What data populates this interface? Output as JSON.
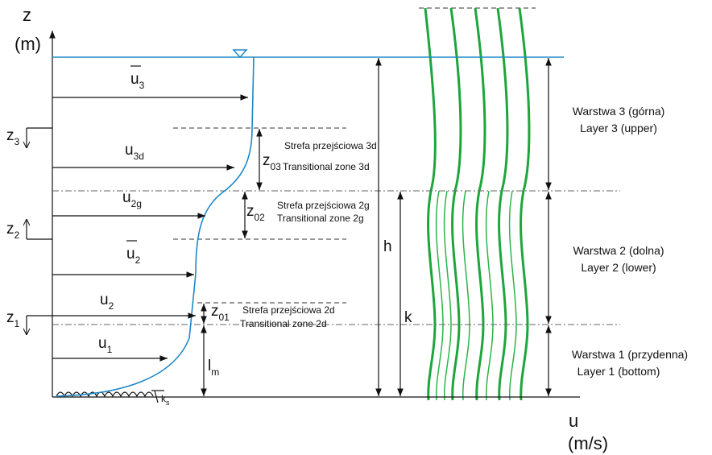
{
  "axes": {
    "z_label": "z",
    "z_unit": "(m)",
    "u_label": "u",
    "u_unit": "(m/s)"
  },
  "velocities": [
    {
      "base": "u",
      "sub": "3"
    },
    {
      "base": "u",
      "sub": "3d"
    },
    {
      "base": "u",
      "sub": "2g"
    },
    {
      "base": "u",
      "sub": "2"
    },
    {
      "base": "u",
      "sub": "2"
    },
    {
      "base": "u",
      "sub": "1"
    }
  ],
  "heights": [
    {
      "base": "z",
      "sub": "3"
    },
    {
      "base": "z",
      "sub": "2"
    },
    {
      "base": "z",
      "sub": "1"
    }
  ],
  "zones": [
    {
      "base": "z",
      "sub": "03",
      "title": "Strefa przejściowa 3d",
      "subtitle": "Transitional zone 3d"
    },
    {
      "base": "z",
      "sub": "02",
      "title": "Strefa przejściowa 2g",
      "subtitle": "Transitional zone 2g"
    },
    {
      "base": "z",
      "sub": "01",
      "title": "Strefa przejściowa 2d",
      "subtitle": "Transitional zone 2d"
    }
  ],
  "dimensions": [
    {
      "base": "l",
      "sub": "m"
    },
    {
      "base": "k",
      "sub": "s"
    },
    {
      "base": "h"
    },
    {
      "base": "k"
    }
  ],
  "layers": [
    {
      "pl": "Warstwa 3 (górna)",
      "en": "Layer 3 (upper)"
    },
    {
      "pl": "Warstwa 2 (dolna)",
      "en": "Layer 2 (lower)"
    },
    {
      "pl": "Warstwa 1 (przydenna)",
      "en": "Layer 1 (bottom)"
    }
  ]
}
